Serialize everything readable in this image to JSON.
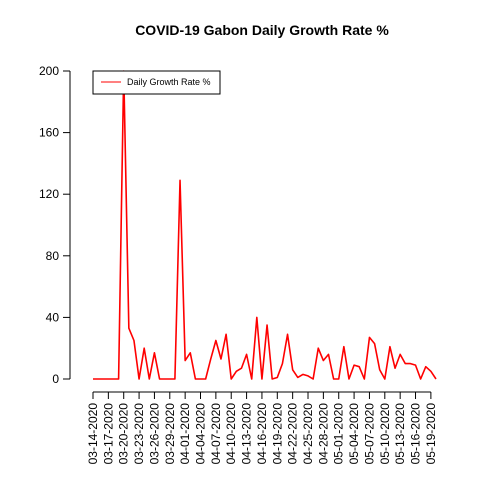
{
  "chart_data": {
    "type": "line",
    "title": "COVID-19 Gabon Daily Growth Rate %",
    "xlabel": "",
    "ylabel": "",
    "ylim": [
      0,
      200
    ],
    "yticks": [
      0,
      40,
      80,
      120,
      160,
      200
    ],
    "grid": false,
    "legend_position": "top-left",
    "x_tick_labels": [
      "03-14-2020",
      "03-17-2020",
      "03-20-2020",
      "03-23-2020",
      "03-26-2020",
      "03-29-2020",
      "04-01-2020",
      "04-04-2020",
      "04-07-2020",
      "04-10-2020",
      "04-13-2020",
      "04-16-2020",
      "04-19-2020",
      "04-22-2020",
      "04-25-2020",
      "04-28-2020",
      "05-01-2020",
      "05-04-2020",
      "05-07-2020",
      "05-10-2020",
      "05-13-2020",
      "05-16-2020",
      "05-19-2020"
    ],
    "x": [
      "03-14-2020",
      "03-15-2020",
      "03-16-2020",
      "03-17-2020",
      "03-18-2020",
      "03-19-2020",
      "03-20-2020",
      "03-21-2020",
      "03-22-2020",
      "03-23-2020",
      "03-24-2020",
      "03-25-2020",
      "03-26-2020",
      "03-27-2020",
      "03-28-2020",
      "03-29-2020",
      "03-30-2020",
      "03-31-2020",
      "04-01-2020",
      "04-02-2020",
      "04-03-2020",
      "04-04-2020",
      "04-05-2020",
      "04-06-2020",
      "04-07-2020",
      "04-08-2020",
      "04-09-2020",
      "04-10-2020",
      "04-11-2020",
      "04-12-2020",
      "04-13-2020",
      "04-14-2020",
      "04-15-2020",
      "04-16-2020",
      "04-17-2020",
      "04-18-2020",
      "04-19-2020",
      "04-20-2020",
      "04-21-2020",
      "04-22-2020",
      "04-23-2020",
      "04-24-2020",
      "04-25-2020",
      "04-26-2020",
      "04-27-2020",
      "04-28-2020",
      "04-29-2020",
      "04-30-2020",
      "05-01-2020",
      "05-02-2020",
      "05-03-2020",
      "05-04-2020",
      "05-05-2020",
      "05-06-2020",
      "05-07-2020",
      "05-08-2020",
      "05-09-2020",
      "05-10-2020",
      "05-11-2020",
      "05-12-2020",
      "05-13-2020",
      "05-14-2020",
      "05-15-2020",
      "05-16-2020",
      "05-17-2020",
      "05-18-2020",
      "05-19-2020",
      "05-20-2020"
    ],
    "series": [
      {
        "name": "Daily Growth Rate %",
        "color": "#ff0000",
        "values": [
          0,
          0,
          0,
          0,
          0,
          0,
          200,
          33,
          25,
          0,
          20,
          0,
          17,
          0,
          0,
          0,
          0,
          129,
          12,
          17,
          0,
          0,
          0,
          13,
          25,
          13,
          29,
          0,
          5,
          7,
          16,
          0,
          40,
          0,
          35,
          0,
          1,
          10,
          29,
          6,
          1,
          3,
          2,
          0,
          20,
          12,
          16,
          0,
          0,
          21,
          0,
          9,
          8,
          0,
          27,
          23,
          6,
          0,
          21,
          7,
          16,
          10,
          10,
          9,
          0,
          8,
          5,
          0
        ]
      }
    ]
  }
}
